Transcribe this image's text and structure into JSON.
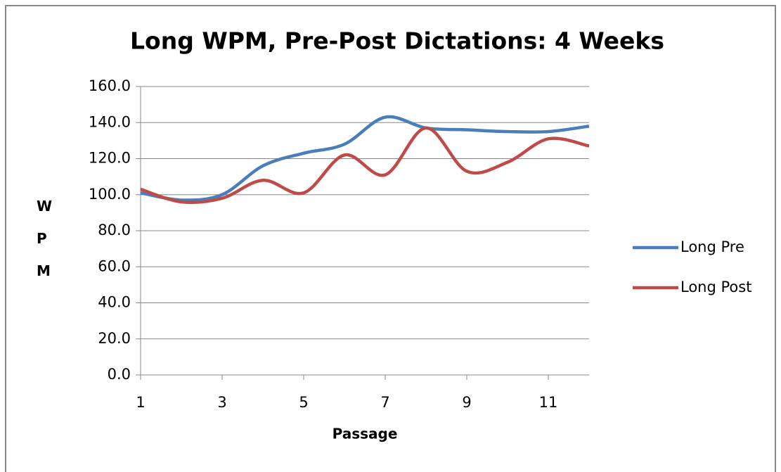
{
  "chart_data": {
    "type": "line",
    "title": "Long WPM, Pre-Post Dictations: 4 Weeks",
    "x_label": "Passage",
    "y_label": "WPM",
    "x": [
      1,
      2,
      3,
      4,
      5,
      6,
      7,
      8,
      9,
      10,
      11,
      12
    ],
    "series": [
      {
        "name": "Long Pre",
        "color": "#4a7ebb",
        "values": [
          101,
          97,
          100,
          116,
          123,
          128,
          143,
          137,
          136,
          135,
          135,
          138
        ]
      },
      {
        "name": "Long Post",
        "color": "#be4b48",
        "values": [
          103,
          96,
          98,
          108,
          101,
          122,
          111,
          137,
          113,
          118,
          131,
          127
        ]
      }
    ],
    "xlim": [
      1,
      12
    ],
    "xticks": [
      1,
      3,
      5,
      7,
      9,
      11
    ],
    "ylim": [
      0,
      160
    ],
    "yticks": [
      {
        "value": 0,
        "label": "0.0"
      },
      {
        "value": 20,
        "label": "20.0"
      },
      {
        "value": 40,
        "label": "40.0"
      },
      {
        "value": 60,
        "label": "60.0"
      },
      {
        "value": 80,
        "label": "80.0"
      },
      {
        "value": 100,
        "label": "100.0"
      },
      {
        "value": 120,
        "label": "120.0"
      },
      {
        "value": 140,
        "label": "140.0"
      },
      {
        "value": 160,
        "label": "160.0"
      }
    ],
    "grid": true,
    "smooth": true,
    "legend": "right"
  }
}
